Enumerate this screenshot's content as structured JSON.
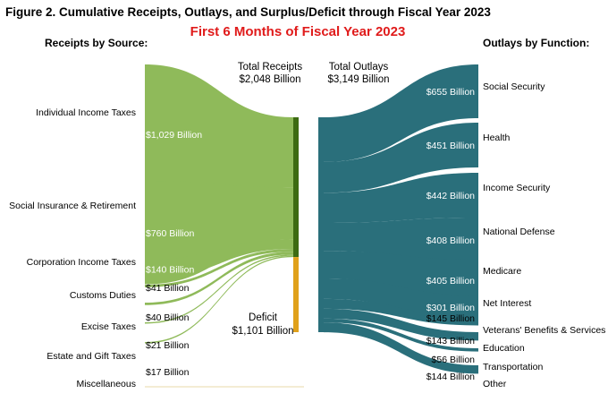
{
  "chart_data": {
    "type": "sankey",
    "title": "Figure 2. Cumulative Receipts, Outlays, and Surplus/Deficit through Fiscal Year 2023",
    "subtitle": "First 6 Months of Fiscal Year 2023",
    "left_header": "Receipts by Source:",
    "right_header": "Outlays by Function:",
    "total_receipts": {
      "line1": "Total Receipts",
      "line2": "$2,048 Billion",
      "value": 2048
    },
    "total_outlays": {
      "line1": "Total Outlays",
      "line2": "$3,149 Billion",
      "value": 3149
    },
    "deficit": {
      "line1": "Deficit",
      "line2": "$1,101 Billion",
      "value": 1101
    },
    "receipts": [
      {
        "name": "Individual Income Taxes",
        "label": "$1,029 Billion",
        "value": 1029
      },
      {
        "name": "Social Insurance & Retirement",
        "label": "$760 Billion",
        "value": 760
      },
      {
        "name": "Corporation Income Taxes",
        "label": "$140 Billion",
        "value": 140
      },
      {
        "name": "Customs Duties",
        "label": "$41 Billion",
        "value": 41
      },
      {
        "name": "Excise Taxes",
        "label": "$40 Billion",
        "value": 40
      },
      {
        "name": "Estate and Gift Taxes",
        "label": "$21 Billion",
        "value": 21
      },
      {
        "name": "Miscellaneous",
        "label": "$17 Billion",
        "value": 17
      }
    ],
    "outlays": [
      {
        "name": "Social Security",
        "label": "$655 Billion",
        "value": 655
      },
      {
        "name": "Health",
        "label": "$451 Billion",
        "value": 451
      },
      {
        "name": "Income Security",
        "label": "$442 Billion",
        "value": 442
      },
      {
        "name": "National Defense",
        "label": "$408 Billion",
        "value": 408
      },
      {
        "name": "Medicare",
        "label": "$405 Billion",
        "value": 405
      },
      {
        "name": "Net Interest",
        "label": "$301 Billion",
        "value": 301
      },
      {
        "name": "Veterans' Benefits & Services",
        "label": "$145 Billion",
        "value": 145
      },
      {
        "name": "Education",
        "label": "$143 Billion",
        "value": 143
      },
      {
        "name": "Transportation",
        "label": "$56 Billion",
        "value": 56
      },
      {
        "name": "Other",
        "label": "$144 Billion",
        "value": 144
      }
    ],
    "colors": {
      "receipts_flow": "#8fba5a",
      "receipts_bar": "#3d6b12",
      "deficit_bar": "#e0a11b",
      "outlays_flow": "#2a6f7b",
      "title": "#000000",
      "subtitle": "#e01b1b"
    }
  }
}
